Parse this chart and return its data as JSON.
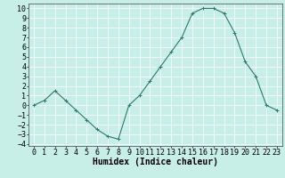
{
  "x": [
    0,
    1,
    2,
    3,
    4,
    5,
    6,
    7,
    8,
    9,
    10,
    11,
    12,
    13,
    14,
    15,
    16,
    17,
    18,
    19,
    20,
    21,
    22,
    23
  ],
  "y": [
    0,
    0.5,
    1.5,
    0.5,
    -0.5,
    -1.5,
    -2.5,
    -3.2,
    -3.5,
    0,
    1,
    2.5,
    4,
    5.5,
    7,
    9.5,
    10,
    10,
    9.5,
    7.5,
    4.5,
    3,
    0,
    -0.5
  ],
  "line_color": "#2d7a6e",
  "marker": "+",
  "bg_color": "#c8eee8",
  "grid_color": "#ffffff",
  "xlabel": "Humidex (Indice chaleur)",
  "ylim": [
    -4.2,
    10.5
  ],
  "xlim": [
    -0.5,
    23.5
  ],
  "yticks": [
    -4,
    -3,
    -2,
    -1,
    0,
    1,
    2,
    3,
    4,
    5,
    6,
    7,
    8,
    9,
    10
  ],
  "xticks": [
    0,
    1,
    2,
    3,
    4,
    5,
    6,
    7,
    8,
    9,
    10,
    11,
    12,
    13,
    14,
    15,
    16,
    17,
    18,
    19,
    20,
    21,
    22,
    23
  ],
  "tick_font_size": 6,
  "label_font_size": 7
}
